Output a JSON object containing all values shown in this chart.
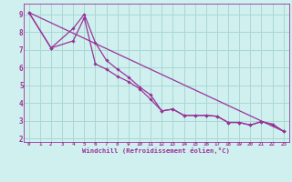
{
  "title": "",
  "xlabel": "Windchill (Refroidissement éolien,°C)",
  "bg_color": "#cff0ee",
  "grid_color": "#aad8d4",
  "line_color": "#993399",
  "xmin": -0.5,
  "xmax": 23.5,
  "ymin": 1.8,
  "ymax": 9.6,
  "yticks": [
    2,
    3,
    4,
    5,
    6,
    7,
    8,
    9
  ],
  "xticks": [
    0,
    1,
    2,
    3,
    4,
    5,
    6,
    7,
    8,
    9,
    10,
    11,
    12,
    13,
    14,
    15,
    16,
    17,
    18,
    19,
    20,
    21,
    22,
    23
  ],
  "series1_x": [
    0,
    2,
    4,
    5,
    6,
    7,
    8,
    9,
    10,
    11,
    12,
    13,
    14,
    15,
    16,
    17,
    18,
    19,
    20,
    21,
    22,
    23
  ],
  "series1_y": [
    9.1,
    7.1,
    7.5,
    8.8,
    6.2,
    5.9,
    5.5,
    5.2,
    4.8,
    4.2,
    3.55,
    3.65,
    3.3,
    3.3,
    3.3,
    3.25,
    2.9,
    2.9,
    2.75,
    2.95,
    2.8,
    2.4
  ],
  "series2_x": [
    0,
    2,
    4,
    5,
    6,
    7,
    8,
    9,
    10,
    11,
    12,
    13,
    14,
    15,
    16,
    17,
    18,
    19,
    20,
    21,
    22,
    23
  ],
  "series2_y": [
    9.1,
    7.1,
    8.2,
    9.0,
    7.4,
    6.4,
    5.9,
    5.45,
    4.9,
    4.45,
    3.55,
    3.65,
    3.3,
    3.3,
    3.3,
    3.25,
    2.9,
    2.9,
    2.75,
    2.95,
    2.8,
    2.4
  ],
  "trend_x": [
    0,
    23
  ],
  "trend_y": [
    9.1,
    2.4
  ]
}
